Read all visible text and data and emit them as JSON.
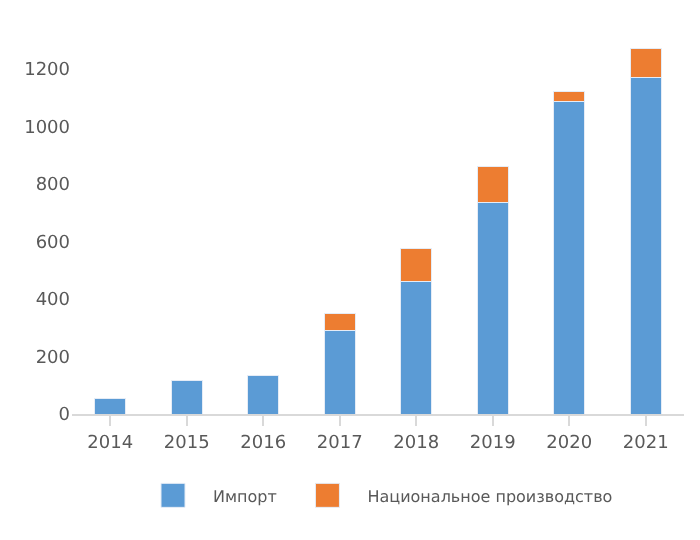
{
  "chart_data": {
    "type": "bar",
    "stacked": true,
    "categories": [
      "2014",
      "2015",
      "2016",
      "2017",
      "2018",
      "2019",
      "2020",
      "2021"
    ],
    "series": [
      {
        "name": "Импорт",
        "color": "#5b9bd5",
        "values": [
          55,
          116,
          135,
          290,
          461,
          734,
          1085,
          1168
        ]
      },
      {
        "name": "Национальное производство",
        "color": "#ed7d31",
        "values": [
          null,
          null,
          null,
          58,
          116,
          127,
          35,
          102
        ]
      }
    ],
    "ylim": [
      0,
      1300
    ],
    "yticks": [
      0,
      200,
      400,
      600,
      800,
      1000,
      1200
    ],
    "legend": "bottom"
  }
}
